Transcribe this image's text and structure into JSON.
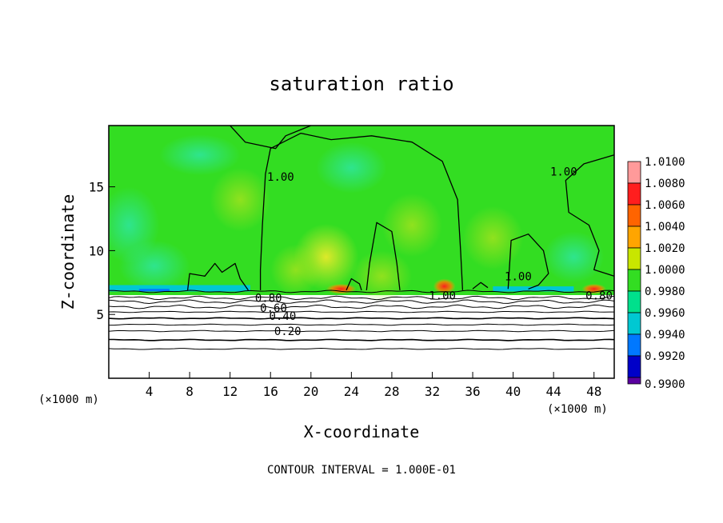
{
  "chart_data": {
    "type": "heatmap",
    "title": "saturation ratio",
    "xlabel": "X-coordinate",
    "ylabel": "Z-coordinate",
    "x_unit_left": "(×1000 m)",
    "x_unit_right": "(×1000 m)",
    "xlim": [
      0,
      50
    ],
    "ylim": [
      0,
      19.8
    ],
    "x_ticks": [
      4,
      8,
      12,
      16,
      20,
      24,
      28,
      32,
      36,
      40,
      44,
      48
    ],
    "y_ticks": [
      5,
      10,
      15
    ],
    "footer": "CONTOUR INTERVAL = 1.000E-01",
    "colorbar": {
      "levels": [
        "1.0100",
        "1.0080",
        "1.0060",
        "1.0040",
        "1.0020",
        "1.0000",
        "0.9980",
        "0.9960",
        "0.9940",
        "0.9920",
        "0.9900"
      ],
      "colors": [
        "#ff9a9a",
        "#ff1e1e",
        "#ff6400",
        "#ffa500",
        "#c8e600",
        "#33dd22",
        "#00e08c",
        "#00c8d2",
        "#0078ff",
        "#0000c8",
        "#5a00a0"
      ]
    },
    "contour_labels": [
      {
        "text": "0.80",
        "x": 15.8,
        "z": 6.3
      },
      {
        "text": "0.60",
        "x": 16.3,
        "z": 5.5
      },
      {
        "text": "0.40",
        "x": 17.2,
        "z": 4.9
      },
      {
        "text": "0.20",
        "x": 17.7,
        "z": 3.7
      },
      {
        "text": "1.00",
        "x": 33.0,
        "z": 6.5
      },
      {
        "text": "0.80",
        "x": 48.5,
        "z": 6.5
      },
      {
        "text": "1.00",
        "x": 17.0,
        "z": 15.8
      },
      {
        "text": "1.00",
        "x": 45.0,
        "z": 16.2
      },
      {
        "text": "1.00",
        "x": 40.5,
        "z": 8.0
      }
    ],
    "cloud_base_z": 6.8,
    "subsaturated_contours_z": [
      6.3,
      6.0,
      5.6,
      5.2,
      4.7,
      4.2,
      3.7,
      3.0,
      2.3
    ]
  }
}
